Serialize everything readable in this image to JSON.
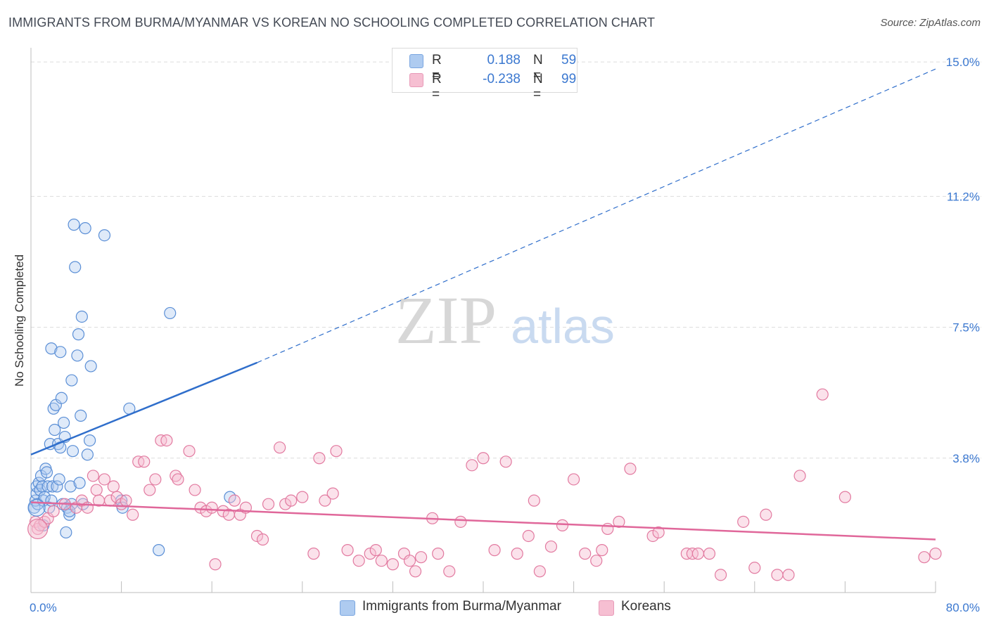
{
  "title": "IMMIGRANTS FROM BURMA/MYANMAR VS KOREAN NO SCHOOLING COMPLETED CORRELATION CHART",
  "source": "Source: ZipAtlas.com",
  "watermark": {
    "zip": "ZIP",
    "atlas": "atlas"
  },
  "colors": {
    "blue": "#5b8fd6",
    "blue_fill": "#aecbf0",
    "blue_line": "#2f6ecb",
    "pink": "#e27aa0",
    "pink_fill": "#f6bfd2",
    "pink_line": "#e0679a",
    "value_text": "#3b78d0",
    "grid": "#dcdcdc"
  },
  "legend_top": [
    {
      "r_label": "R =",
      "r_value": "0.188",
      "n_label": "N =",
      "n_value": "59",
      "color": "#aecbf0",
      "border": "#7aa6e0"
    },
    {
      "r_label": "R =",
      "r_value": "-0.238",
      "n_label": "N =",
      "n_value": "99",
      "color": "#f6bfd2",
      "border": "#e89ab8"
    }
  ],
  "legend_bottom": [
    {
      "label": "Immigrants from Burma/Myanmar",
      "color": "#aecbf0",
      "border": "#7aa6e0"
    },
    {
      "label": "Koreans",
      "color": "#f6bfd2",
      "border": "#e89ab8"
    }
  ],
  "chart_data": {
    "type": "scatter",
    "title": "IMMIGRANTS FROM BURMA/MYANMAR VS KOREAN NO SCHOOLING COMPLETED CORRELATION CHART",
    "xlabel": "",
    "ylabel": "No Schooling Completed",
    "xlim": [
      0,
      80
    ],
    "ylim": [
      0,
      15.4
    ],
    "x_tick_labels": [
      {
        "value": 0,
        "label": "0.0%"
      },
      {
        "value": 80,
        "label": "80.0%"
      }
    ],
    "y_tick_labels": [
      {
        "value": 3.8,
        "label": "3.8%"
      },
      {
        "value": 7.5,
        "label": "7.5%"
      },
      {
        "value": 11.2,
        "label": "11.2%"
      },
      {
        "value": 15.0,
        "label": "15.0%"
      }
    ],
    "y_gridlines": [
      3.8,
      7.5,
      11.2,
      15.0
    ],
    "x_minor_ticks": [
      0,
      8,
      16,
      24,
      32,
      40,
      48,
      56,
      64,
      72,
      80
    ],
    "series": [
      {
        "name": "Immigrants from Burma/Myanmar",
        "color": "#5b8fd6",
        "points": [
          [
            0.3,
            2.4
          ],
          [
            0.4,
            2.6
          ],
          [
            0.5,
            2.8
          ],
          [
            0.5,
            3.0
          ],
          [
            0.6,
            2.5
          ],
          [
            0.7,
            3.1
          ],
          [
            0.8,
            2.9
          ],
          [
            0.9,
            3.3
          ],
          [
            1.0,
            3.0
          ],
          [
            1.1,
            2.6
          ],
          [
            1.2,
            2.7
          ],
          [
            1.3,
            3.5
          ],
          [
            1.4,
            3.4
          ],
          [
            1.5,
            3.0
          ],
          [
            1.6,
            2.4
          ],
          [
            1.7,
            4.2
          ],
          [
            1.8,
            2.6
          ],
          [
            1.9,
            3.0
          ],
          [
            2.0,
            5.2
          ],
          [
            2.1,
            4.6
          ],
          [
            2.2,
            5.3
          ],
          [
            2.3,
            3.0
          ],
          [
            2.4,
            4.2
          ],
          [
            2.5,
            3.2
          ],
          [
            2.6,
            4.1
          ],
          [
            2.7,
            5.5
          ],
          [
            2.8,
            2.5
          ],
          [
            2.9,
            4.8
          ],
          [
            3.0,
            4.4
          ],
          [
            3.1,
            1.7
          ],
          [
            3.2,
            2.4
          ],
          [
            3.4,
            2.2
          ],
          [
            3.5,
            3.0
          ],
          [
            3.6,
            2.5
          ],
          [
            3.7,
            4.0
          ],
          [
            3.8,
            10.4
          ],
          [
            3.9,
            9.2
          ],
          [
            4.1,
            6.7
          ],
          [
            4.2,
            7.3
          ],
          [
            4.3,
            3.1
          ],
          [
            4.4,
            5.0
          ],
          [
            4.5,
            7.8
          ],
          [
            4.6,
            2.5
          ],
          [
            4.8,
            10.3
          ],
          [
            5.0,
            3.9
          ],
          [
            5.2,
            4.3
          ],
          [
            5.3,
            6.4
          ],
          [
            3.6,
            6.0
          ],
          [
            6.5,
            10.1
          ],
          [
            8.0,
            2.6
          ],
          [
            8.1,
            2.4
          ],
          [
            8.7,
            5.2
          ],
          [
            11.3,
            1.2
          ],
          [
            12.3,
            7.9
          ],
          [
            17.6,
            2.7
          ],
          [
            1.8,
            6.9
          ],
          [
            2.6,
            6.8
          ],
          [
            3.4,
            2.3
          ],
          [
            1.1,
            1.9
          ]
        ]
      },
      {
        "name": "Koreans",
        "color": "#e27aa0",
        "points": [
          [
            0.4,
            2.0
          ],
          [
            0.6,
            1.8
          ],
          [
            0.8,
            1.9
          ],
          [
            1.2,
            2.0
          ],
          [
            1.5,
            2.1
          ],
          [
            2.0,
            2.3
          ],
          [
            3.0,
            2.5
          ],
          [
            4.0,
            2.4
          ],
          [
            4.5,
            2.6
          ],
          [
            5.0,
            2.4
          ],
          [
            5.5,
            3.3
          ],
          [
            5.8,
            2.9
          ],
          [
            6.0,
            2.6
          ],
          [
            6.5,
            3.2
          ],
          [
            7.0,
            2.6
          ],
          [
            7.3,
            3.0
          ],
          [
            7.6,
            2.7
          ],
          [
            8.0,
            2.5
          ],
          [
            8.4,
            2.6
          ],
          [
            9.0,
            2.2
          ],
          [
            9.5,
            3.7
          ],
          [
            10.0,
            3.7
          ],
          [
            10.5,
            2.9
          ],
          [
            11.0,
            3.2
          ],
          [
            11.5,
            4.3
          ],
          [
            12.0,
            4.3
          ],
          [
            12.8,
            3.3
          ],
          [
            13.0,
            3.2
          ],
          [
            14.0,
            4.0
          ],
          [
            14.5,
            2.9
          ],
          [
            15.0,
            2.4
          ],
          [
            15.5,
            2.3
          ],
          [
            16.0,
            2.4
          ],
          [
            16.3,
            0.8
          ],
          [
            17.0,
            2.3
          ],
          [
            17.5,
            2.2
          ],
          [
            18.0,
            2.6
          ],
          [
            18.5,
            2.2
          ],
          [
            19.0,
            2.4
          ],
          [
            20.0,
            1.6
          ],
          [
            20.5,
            1.5
          ],
          [
            21.0,
            2.5
          ],
          [
            22.0,
            4.1
          ],
          [
            22.5,
            2.5
          ],
          [
            23.0,
            2.6
          ],
          [
            24.0,
            2.7
          ],
          [
            25.0,
            1.1
          ],
          [
            25.5,
            3.8
          ],
          [
            26.0,
            2.6
          ],
          [
            26.7,
            2.8
          ],
          [
            27.0,
            4.0
          ],
          [
            28.0,
            1.2
          ],
          [
            29.0,
            0.9
          ],
          [
            30.0,
            1.1
          ],
          [
            30.5,
            1.2
          ],
          [
            31.0,
            0.9
          ],
          [
            32.0,
            0.8
          ],
          [
            33.0,
            1.1
          ],
          [
            33.5,
            0.9
          ],
          [
            34.0,
            0.6
          ],
          [
            34.5,
            1.0
          ],
          [
            35.5,
            2.1
          ],
          [
            36.0,
            1.1
          ],
          [
            37.0,
            0.6
          ],
          [
            38.0,
            2.0
          ],
          [
            39.0,
            3.6
          ],
          [
            40.0,
            3.8
          ],
          [
            41.0,
            1.2
          ],
          [
            42.0,
            3.7
          ],
          [
            43.0,
            1.1
          ],
          [
            44.0,
            1.6
          ],
          [
            44.5,
            2.6
          ],
          [
            45.0,
            0.6
          ],
          [
            46.0,
            1.3
          ],
          [
            47.0,
            1.9
          ],
          [
            48.0,
            3.2
          ],
          [
            49.0,
            1.1
          ],
          [
            50.0,
            0.9
          ],
          [
            50.5,
            1.2
          ],
          [
            51.0,
            1.8
          ],
          [
            52.0,
            2.0
          ],
          [
            53.0,
            3.5
          ],
          [
            55.0,
            1.6
          ],
          [
            55.5,
            1.7
          ],
          [
            58.0,
            1.1
          ],
          [
            58.5,
            1.1
          ],
          [
            59.0,
            1.1
          ],
          [
            60.0,
            1.1
          ],
          [
            61.0,
            0.5
          ],
          [
            63.0,
            2.0
          ],
          [
            64.0,
            0.7
          ],
          [
            65.0,
            2.2
          ],
          [
            66.0,
            0.5
          ],
          [
            67.0,
            0.5
          ],
          [
            68.0,
            3.3
          ],
          [
            70.0,
            5.6
          ],
          [
            72.0,
            2.7
          ],
          [
            79.0,
            1.0
          ],
          [
            80.0,
            1.1
          ]
        ]
      }
    ],
    "trend_lines": [
      {
        "series": "Immigrants from Burma/Myanmar",
        "solid": [
          [
            0,
            3.9
          ],
          [
            20,
            6.5
          ]
        ],
        "dashed": [
          [
            20,
            6.5
          ],
          [
            80,
            14.8
          ]
        ],
        "color": "#2f6ecb"
      },
      {
        "series": "Koreans",
        "solid": [
          [
            0,
            2.55
          ],
          [
            80,
            1.5
          ]
        ],
        "color": "#e0679a"
      }
    ]
  }
}
